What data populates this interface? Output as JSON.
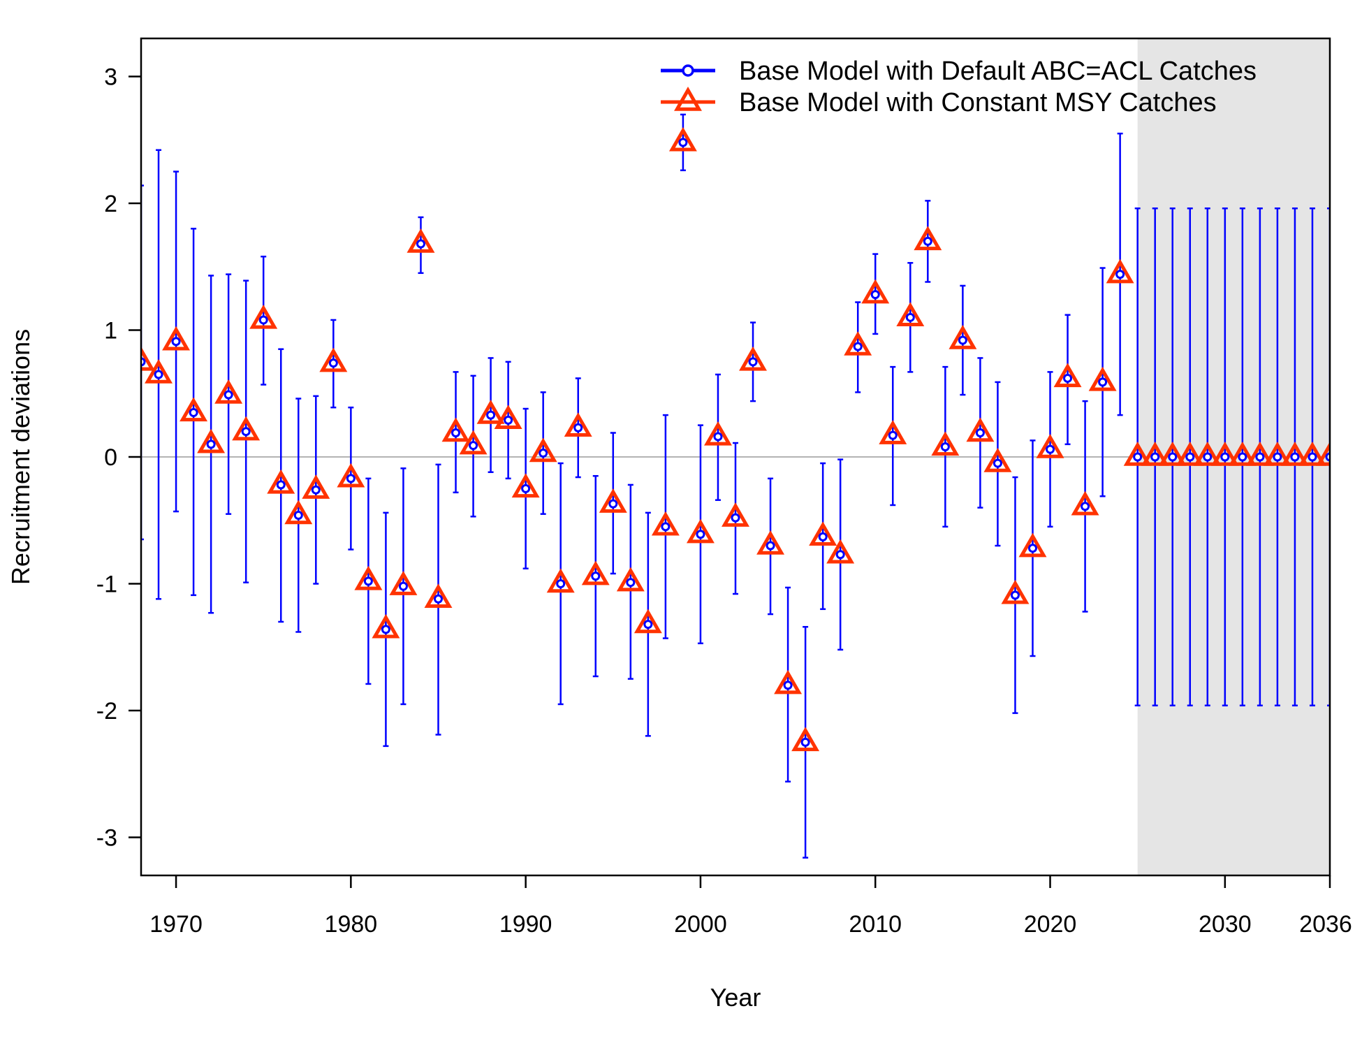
{
  "chart_data": {
    "type": "scatter",
    "title": "",
    "xlabel": "Year",
    "ylabel": "Recruitment deviations",
    "xlim": [
      1968,
      2036
    ],
    "ylim": [
      -3.3,
      3.3
    ],
    "x_ticks": [
      1970,
      1980,
      1990,
      2000,
      2010,
      2020,
      2030,
      2036
    ],
    "y_ticks": [
      -3,
      -2,
      -1,
      0,
      1,
      2,
      3
    ],
    "x_tick_labels": [
      "1970",
      "1980",
      "1990",
      "2000",
      "2010",
      "2020",
      "2030",
      "2036"
    ],
    "y_tick_labels": [
      "-3",
      "-2",
      "-1",
      "0",
      "1",
      "2",
      "3"
    ],
    "shaded_region": {
      "x_from": 2025,
      "x_to": 2036,
      "color": "#e5e5e5"
    },
    "reference_line": {
      "y": 0,
      "color": "#b3b3b3"
    },
    "legend_position": "top-right",
    "grid": false,
    "years": [
      1968,
      1969,
      1970,
      1971,
      1972,
      1973,
      1974,
      1975,
      1976,
      1977,
      1978,
      1979,
      1980,
      1981,
      1982,
      1983,
      1984,
      1985,
      1986,
      1987,
      1988,
      1989,
      1990,
      1991,
      1992,
      1993,
      1994,
      1995,
      1996,
      1997,
      1998,
      1999,
      2000,
      2001,
      2002,
      2003,
      2004,
      2005,
      2006,
      2007,
      2008,
      2009,
      2010,
      2011,
      2012,
      2013,
      2014,
      2015,
      2016,
      2017,
      2018,
      2019,
      2020,
      2021,
      2022,
      2023,
      2024,
      2025,
      2026,
      2027,
      2028,
      2029,
      2030,
      2031,
      2032,
      2033,
      2034,
      2035,
      2036
    ],
    "series": [
      {
        "name": "Base Model with Default ABC=ACL Catches",
        "color": "#0000ff",
        "marker": "circle",
        "values": [
          0.75,
          0.65,
          0.91,
          0.35,
          0.1,
          0.49,
          0.2,
          1.08,
          -0.22,
          -0.46,
          -0.26,
          0.74,
          -0.17,
          -0.98,
          -1.36,
          -1.02,
          1.68,
          -1.12,
          0.19,
          0.09,
          0.33,
          0.29,
          -0.25,
          0.03,
          -1.0,
          0.23,
          -0.94,
          -0.37,
          -0.99,
          -1.32,
          -0.55,
          2.48,
          -0.61,
          0.16,
          -0.48,
          0.75,
          -0.7,
          -1.8,
          -2.25,
          -0.63,
          -0.77,
          0.87,
          1.28,
          0.17,
          1.1,
          1.7,
          0.08,
          0.92,
          0.19,
          -0.05,
          -1.09,
          -0.72,
          0.06,
          0.62,
          -0.39,
          0.59,
          1.44,
          0,
          0,
          0,
          0,
          0,
          0,
          0,
          0,
          0,
          0,
          0,
          0
        ],
        "lower": [
          -0.65,
          -1.12,
          -0.43,
          -1.09,
          -1.23,
          -0.45,
          -0.99,
          0.57,
          -1.3,
          -1.38,
          -1.0,
          0.39,
          -0.73,
          -1.79,
          -2.28,
          -1.95,
          1.45,
          -2.19,
          -0.28,
          -0.47,
          -0.12,
          -0.17,
          -0.88,
          -0.45,
          -1.95,
          -0.16,
          -1.73,
          -0.92,
          -1.75,
          -2.2,
          -1.43,
          2.26,
          -1.47,
          -0.34,
          -1.08,
          0.44,
          -1.24,
          -2.56,
          -3.16,
          -1.2,
          -1.52,
          0.51,
          0.97,
          -0.38,
          0.67,
          1.38,
          -0.55,
          0.49,
          -0.4,
          -0.7,
          -2.02,
          -1.57,
          -0.55,
          0.1,
          -1.22,
          -0.31,
          0.33,
          -1.96,
          -1.96,
          -1.96,
          -1.96,
          -1.96,
          -1.96,
          -1.96,
          -1.96,
          -1.96,
          -1.96,
          -1.96,
          -1.96
        ],
        "upper": [
          2.14,
          2.42,
          2.25,
          1.8,
          1.43,
          1.44,
          1.39,
          1.58,
          0.85,
          0.46,
          0.48,
          1.08,
          0.39,
          -0.17,
          -0.44,
          -0.09,
          1.89,
          -0.06,
          0.67,
          0.64,
          0.78,
          0.75,
          0.38,
          0.51,
          -0.05,
          0.62,
          -0.15,
          0.19,
          -0.22,
          -0.44,
          0.33,
          2.7,
          0.25,
          0.65,
          0.11,
          1.06,
          -0.17,
          -1.03,
          -1.34,
          -0.05,
          -0.02,
          1.22,
          1.6,
          0.71,
          1.53,
          2.02,
          0.71,
          1.35,
          0.78,
          0.59,
          -0.16,
          0.13,
          0.67,
          1.12,
          0.44,
          1.49,
          2.55,
          1.96,
          1.96,
          1.96,
          1.96,
          1.96,
          1.96,
          1.96,
          1.96,
          1.96,
          1.96,
          1.96,
          1.96
        ]
      },
      {
        "name": "Base Model with Constant MSY Catches",
        "color": "#ff3300",
        "marker": "triangle",
        "values": [
          0.75,
          0.65,
          0.91,
          0.35,
          0.1,
          0.49,
          0.2,
          1.08,
          -0.22,
          -0.46,
          -0.26,
          0.74,
          -0.17,
          -0.98,
          -1.36,
          -1.02,
          1.68,
          -1.12,
          0.19,
          0.09,
          0.33,
          0.29,
          -0.25,
          0.03,
          -1.0,
          0.23,
          -0.94,
          -0.37,
          -0.99,
          -1.32,
          -0.55,
          2.48,
          -0.61,
          0.16,
          -0.48,
          0.75,
          -0.7,
          -1.8,
          -2.25,
          -0.63,
          -0.77,
          0.87,
          1.28,
          0.17,
          1.1,
          1.7,
          0.08,
          0.92,
          0.19,
          -0.05,
          -1.09,
          -0.72,
          0.06,
          0.62,
          -0.39,
          0.59,
          1.44,
          0,
          0,
          0,
          0,
          0,
          0,
          0,
          0,
          0,
          0,
          0,
          0
        ]
      }
    ]
  }
}
